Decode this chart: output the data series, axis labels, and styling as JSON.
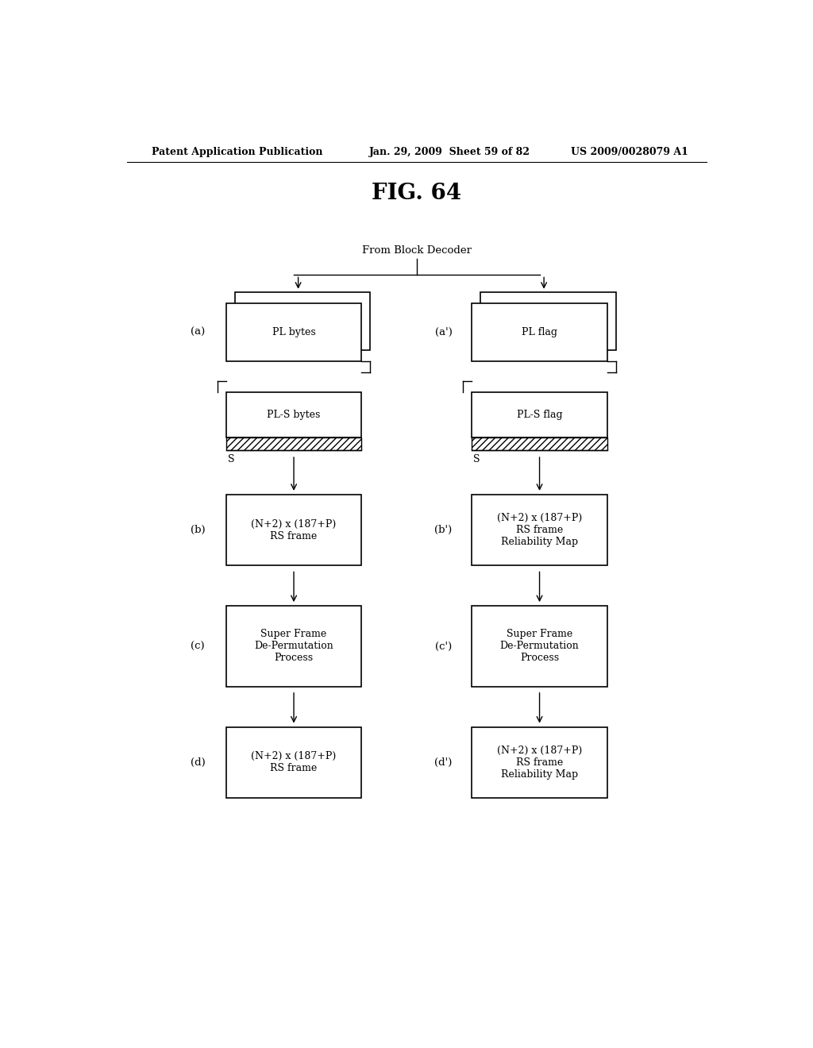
{
  "header_left": "Patent Application Publication",
  "header_center": "Jan. 29, 2009  Sheet 59 of 82",
  "header_right": "US 2009/0028079 A1",
  "title": "FIG. 64",
  "from_block_decoder": "From Block Decoder",
  "bg_color": "#ffffff"
}
